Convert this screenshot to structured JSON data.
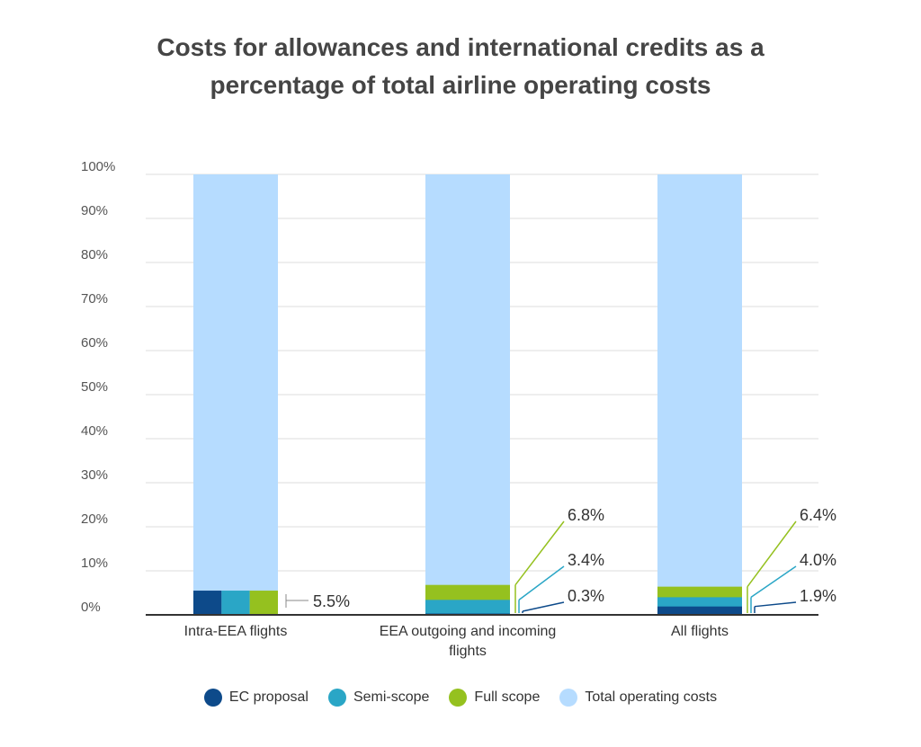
{
  "chart_data": {
    "type": "bar",
    "stacked_detail": true,
    "title_lines": [
      "Costs for allowances and international credits as a",
      "percentage of total airline operating costs"
    ],
    "xlabel": "",
    "ylabel": "",
    "ylim": [
      0,
      100
    ],
    "y_ticks": [
      0,
      10,
      20,
      30,
      40,
      50,
      60,
      70,
      80,
      90,
      100
    ],
    "y_tick_labels": [
      "0%",
      "10%",
      "20%",
      "30%",
      "40%",
      "50%",
      "60%",
      "70%",
      "80%",
      "90%",
      "100%"
    ],
    "grid": true,
    "legend_position": "bottom",
    "categories": [
      {
        "label_lines": [
          "Intra-EEA flights"
        ]
      },
      {
        "label_lines": [
          "EEA outgoing and incoming",
          "flights"
        ]
      },
      {
        "label_lines": [
          "All flights"
        ]
      }
    ],
    "series": [
      {
        "name": "EC proposal",
        "color": "#0d4a8a",
        "values": [
          5.5,
          0.3,
          1.9
        ]
      },
      {
        "name": "Semi-scope",
        "color": "#2aa6c6",
        "values": [
          5.5,
          3.4,
          4.0
        ]
      },
      {
        "name": "Full scope",
        "color": "#95c11f",
        "values": [
          5.5,
          6.8,
          6.4
        ]
      },
      {
        "name": "Total operating costs",
        "color": "#b6dcff",
        "values": [
          100,
          100,
          100
        ]
      }
    ],
    "annotations": [
      {
        "category": 0,
        "labels": [
          {
            "series": "Full scope",
            "text": "5.5%"
          }
        ]
      },
      {
        "category": 1,
        "labels": [
          {
            "series": "Full scope",
            "text": "6.8%"
          },
          {
            "series": "Semi-scope",
            "text": "3.4%"
          },
          {
            "series": "EC proposal",
            "text": "0.3%"
          }
        ]
      },
      {
        "category": 2,
        "labels": [
          {
            "series": "Full scope",
            "text": "6.4%"
          },
          {
            "series": "Semi-scope",
            "text": "4.0%"
          },
          {
            "series": "EC proposal",
            "text": "1.9%"
          }
        ]
      }
    ]
  }
}
